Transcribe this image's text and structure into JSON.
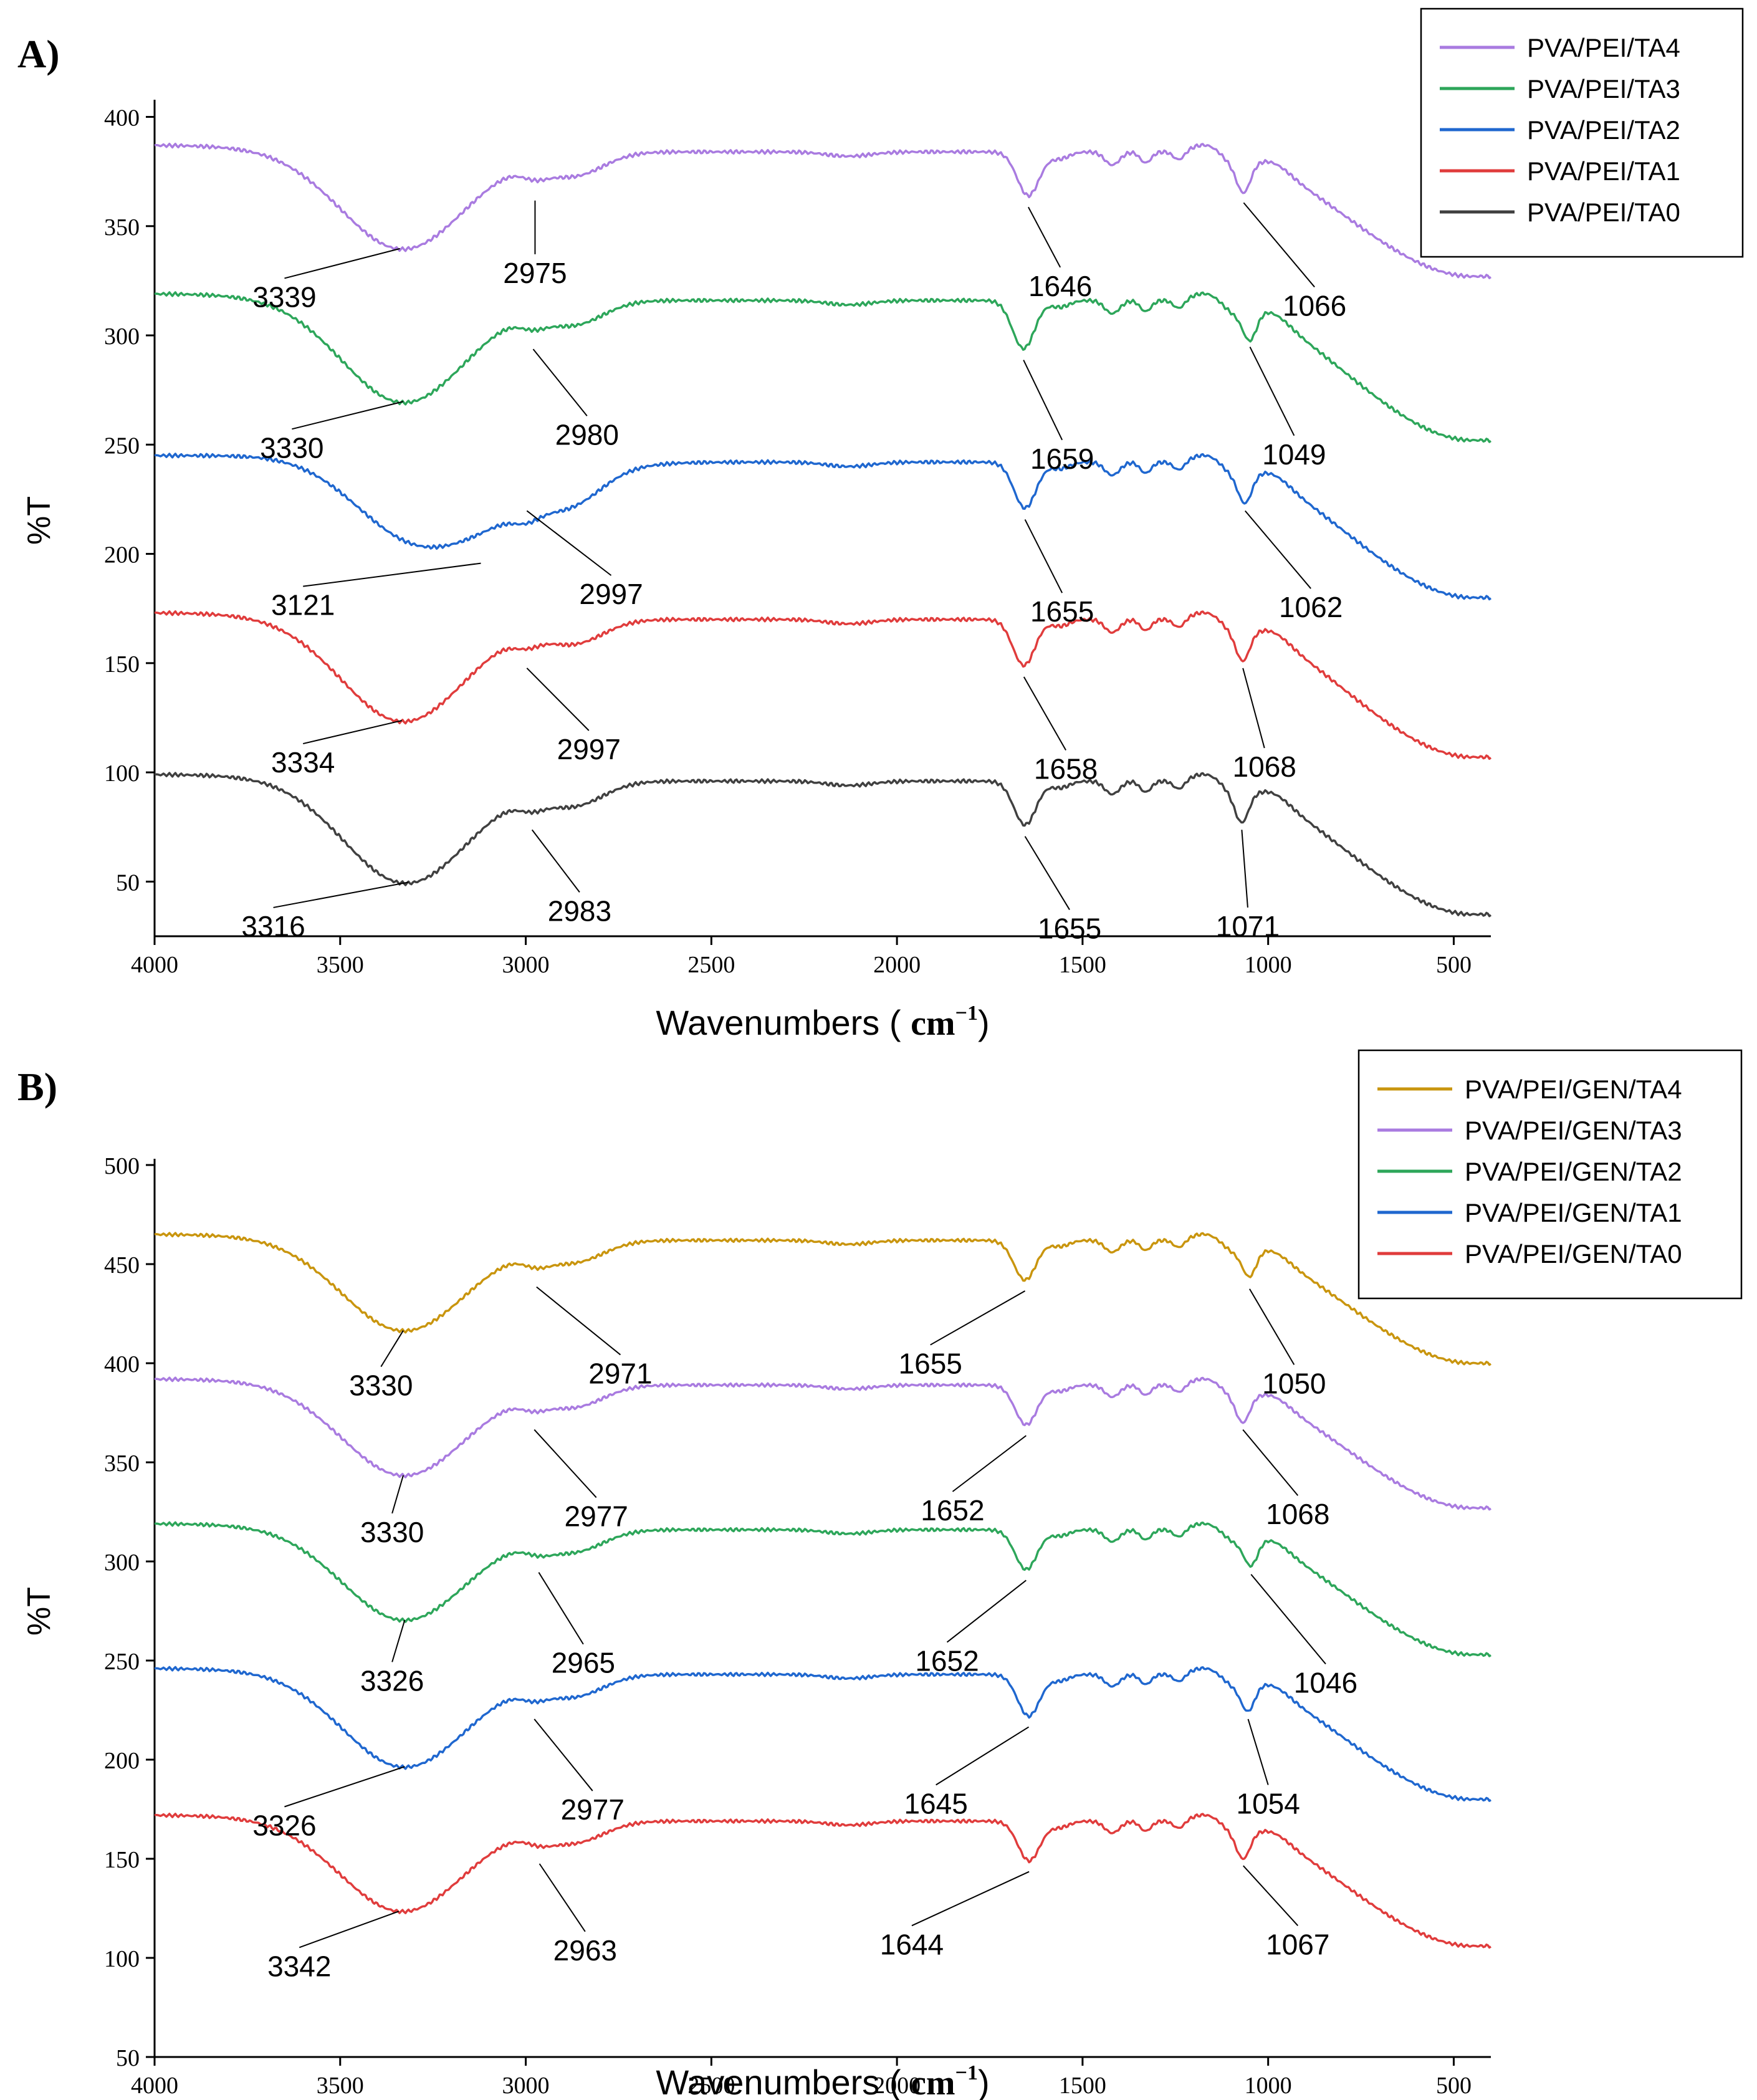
{
  "chart_data": [
    {
      "panel": "A)",
      "type": "line",
      "xlabel": "Wavenumbers",
      "xunit_base": "cm",
      "xunit_exp": "−1",
      "ylabel": "%T",
      "xlim": [
        4000,
        400
      ],
      "ylim": [
        25,
        405
      ],
      "xticks": [
        4000,
        3500,
        3000,
        2500,
        2000,
        1500,
        1000,
        500
      ],
      "yticks": [
        50,
        100,
        150,
        200,
        250,
        300,
        350,
        400
      ],
      "legend_position": "top-right",
      "series": [
        {
          "name": "PVA/PEI/TA4",
          "color": "#a97be0",
          "base": 384,
          "start": 387,
          "end": 327,
          "peaks": [
            {
              "wn": 3339,
              "y": 342
            },
            {
              "wn": 2975,
              "y": 364
            },
            {
              "wn": 1646,
              "y": 361
            },
            {
              "wn": 1066,
              "y": 363
            }
          ]
        },
        {
          "name": "PVA/PEI/TA3",
          "color": "#2da65a",
          "base": 316,
          "start": 319,
          "end": 252,
          "peaks": [
            {
              "wn": 3330,
              "y": 272
            },
            {
              "wn": 2980,
              "y": 296
            },
            {
              "wn": 1659,
              "y": 291
            },
            {
              "wn": 1049,
              "y": 297
            }
          ]
        },
        {
          "name": "PVA/PEI/TA2",
          "color": "#1f67cf",
          "base": 242,
          "start": 245,
          "end": 180,
          "peaks": [
            {
              "wn": 3121,
              "y": 198
            },
            {
              "wn": 2997,
              "y": 222
            },
            {
              "wn": 1655,
              "y": 218
            },
            {
              "wn": 1062,
              "y": 222
            }
          ]
        },
        {
          "name": "PVA/PEI/TA1",
          "color": "#e03c3c",
          "base": 170,
          "start": 173,
          "end": 107,
          "peaks": [
            {
              "wn": 3334,
              "y": 126
            },
            {
              "wn": 2997,
              "y": 150
            },
            {
              "wn": 1658,
              "y": 146
            },
            {
              "wn": 1068,
              "y": 150
            }
          ]
        },
        {
          "name": "PVA/PEI/TA0",
          "color": "#404040",
          "base": 96,
          "start": 99,
          "end": 35,
          "peaks": [
            {
              "wn": 3316,
              "y": 52
            },
            {
              "wn": 2983,
              "y": 76
            },
            {
              "wn": 1655,
              "y": 73
            },
            {
              "wn": 1071,
              "y": 76
            }
          ]
        }
      ],
      "annotations": [
        {
          "text": "3339",
          "wn": 3339,
          "y": 342,
          "tx": 3650,
          "ty": 325
        },
        {
          "text": "2975",
          "wn": 2975,
          "y": 364,
          "tx": 2975,
          "ty": 336
        },
        {
          "text": "1646",
          "wn": 1646,
          "y": 361,
          "tx": 1560,
          "ty": 330
        },
        {
          "text": "1066",
          "wn": 1066,
          "y": 363,
          "tx": 875,
          "ty": 321
        },
        {
          "text": "3330",
          "wn": 3330,
          "y": 272,
          "tx": 3630,
          "ty": 256
        },
        {
          "text": "2980",
          "wn": 2980,
          "y": 296,
          "tx": 2835,
          "ty": 262
        },
        {
          "text": "1659",
          "wn": 1659,
          "y": 291,
          "tx": 1555,
          "ty": 251
        },
        {
          "text": "1049",
          "wn": 1049,
          "y": 297,
          "tx": 930,
          "ty": 253
        },
        {
          "text": "3121",
          "wn": 3121,
          "y": 198,
          "tx": 3600,
          "ty": 184
        },
        {
          "text": "2997",
          "wn": 2997,
          "y": 222,
          "tx": 2770,
          "ty": 189
        },
        {
          "text": "1655",
          "wn": 1655,
          "y": 218,
          "tx": 1555,
          "ty": 181
        },
        {
          "text": "1062",
          "wn": 1062,
          "y": 222,
          "tx": 885,
          "ty": 183
        },
        {
          "text": "3334",
          "wn": 3334,
          "y": 126,
          "tx": 3600,
          "ty": 112
        },
        {
          "text": "2997",
          "wn": 2997,
          "y": 150,
          "tx": 2830,
          "ty": 118
        },
        {
          "text": "1658",
          "wn": 1658,
          "y": 146,
          "tx": 1545,
          "ty": 109
        },
        {
          "text": "1068",
          "wn": 1068,
          "y": 150,
          "tx": 1010,
          "ty": 110
        },
        {
          "text": "3316",
          "wn": 3316,
          "y": 52,
          "tx": 3680,
          "ty": 37
        },
        {
          "text": "2983",
          "wn": 2983,
          "y": 76,
          "tx": 2855,
          "ty": 44
        },
        {
          "text": "1655",
          "wn": 1655,
          "y": 73,
          "tx": 1535,
          "ty": 36
        },
        {
          "text": "1071",
          "wn": 1071,
          "y": 76,
          "tx": 1055,
          "ty": 37
        }
      ]
    },
    {
      "panel": "B)",
      "type": "line",
      "xlabel": "Wavenumbers",
      "xunit_base": "cm",
      "xunit_exp": "−1",
      "ylabel": "%T",
      "xlim": [
        4000,
        400
      ],
      "ylim": [
        50,
        500
      ],
      "xticks": [
        4000,
        3500,
        3000,
        2500,
        2000,
        1500,
        1000,
        500
      ],
      "yticks": [
        50,
        100,
        150,
        200,
        250,
        300,
        350,
        400,
        450,
        500
      ],
      "legend_position": "top-right",
      "series": [
        {
          "name": "PVA/PEI/GEN/TA4",
          "color": "#c9950e",
          "base": 462,
          "start": 465,
          "end": 400,
          "peaks": [
            {
              "wn": 3330,
              "y": 419
            },
            {
              "wn": 2971,
              "y": 441
            },
            {
              "wn": 1655,
              "y": 439
            },
            {
              "wn": 1050,
              "y": 440
            }
          ]
        },
        {
          "name": "PVA/PEI/GEN/TA3",
          "color": "#a97be0",
          "base": 389,
          "start": 392,
          "end": 327,
          "peaks": [
            {
              "wn": 3330,
              "y": 346
            },
            {
              "wn": 2977,
              "y": 369
            },
            {
              "wn": 1652,
              "y": 366
            },
            {
              "wn": 1068,
              "y": 369
            }
          ]
        },
        {
          "name": "PVA/PEI/GEN/TA2",
          "color": "#2da65a",
          "base": 316,
          "start": 319,
          "end": 253,
          "peaks": [
            {
              "wn": 3326,
              "y": 273
            },
            {
              "wn": 2965,
              "y": 297
            },
            {
              "wn": 1652,
              "y": 293
            },
            {
              "wn": 1046,
              "y": 296
            }
          ]
        },
        {
          "name": "PVA/PEI/GEN/TA1",
          "color": "#1f67cf",
          "base": 243,
          "start": 246,
          "end": 180,
          "peaks": [
            {
              "wn": 3326,
              "y": 199
            },
            {
              "wn": 2977,
              "y": 223
            },
            {
              "wn": 1645,
              "y": 219
            },
            {
              "wn": 1054,
              "y": 223
            }
          ]
        },
        {
          "name": "PVA/PEI/GEN/TA0",
          "color": "#e03c3c",
          "base": 169,
          "start": 172,
          "end": 106,
          "peaks": [
            {
              "wn": 3342,
              "y": 126
            },
            {
              "wn": 2963,
              "y": 150
            },
            {
              "wn": 1644,
              "y": 146
            },
            {
              "wn": 1067,
              "y": 149
            }
          ]
        }
      ],
      "annotations": [
        {
          "text": "3330",
          "wn": 3330,
          "y": 419,
          "tx": 3390,
          "ty": 397
        },
        {
          "text": "2971",
          "wn": 2971,
          "y": 441,
          "tx": 2745,
          "ty": 403
        },
        {
          "text": "1655",
          "wn": 1655,
          "y": 439,
          "tx": 1910,
          "ty": 408
        },
        {
          "text": "1050",
          "wn": 1050,
          "y": 440,
          "tx": 930,
          "ty": 398
        },
        {
          "text": "3330",
          "wn": 3330,
          "y": 346,
          "tx": 3360,
          "ty": 323
        },
        {
          "text": "2977",
          "wn": 2977,
          "y": 369,
          "tx": 2810,
          "ty": 331
        },
        {
          "text": "1652",
          "wn": 1652,
          "y": 366,
          "tx": 1850,
          "ty": 334
        },
        {
          "text": "1068",
          "wn": 1068,
          "y": 369,
          "tx": 920,
          "ty": 332
        },
        {
          "text": "3326",
          "wn": 3326,
          "y": 273,
          "tx": 3360,
          "ty": 248
        },
        {
          "text": "2965",
          "wn": 2965,
          "y": 297,
          "tx": 2845,
          "ty": 257
        },
        {
          "text": "1652",
          "wn": 1652,
          "y": 293,
          "tx": 1865,
          "ty": 258
        },
        {
          "text": "1046",
          "wn": 1046,
          "y": 296,
          "tx": 845,
          "ty": 247
        },
        {
          "text": "3326",
          "wn": 3326,
          "y": 199,
          "tx": 3650,
          "ty": 175
        },
        {
          "text": "2977",
          "wn": 2977,
          "y": 223,
          "tx": 2820,
          "ty": 183
        },
        {
          "text": "1645",
          "wn": 1645,
          "y": 219,
          "tx": 1895,
          "ty": 186
        },
        {
          "text": "1054",
          "wn": 1054,
          "y": 223,
          "tx": 1000,
          "ty": 186
        },
        {
          "text": "3342",
          "wn": 3342,
          "y": 126,
          "tx": 3610,
          "ty": 104
        },
        {
          "text": "2963",
          "wn": 2963,
          "y": 150,
          "tx": 2840,
          "ty": 112
        },
        {
          "text": "1644",
          "wn": 1644,
          "y": 146,
          "tx": 1960,
          "ty": 115
        },
        {
          "text": "1067",
          "wn": 1067,
          "y": 149,
          "tx": 920,
          "ty": 115
        }
      ]
    }
  ]
}
